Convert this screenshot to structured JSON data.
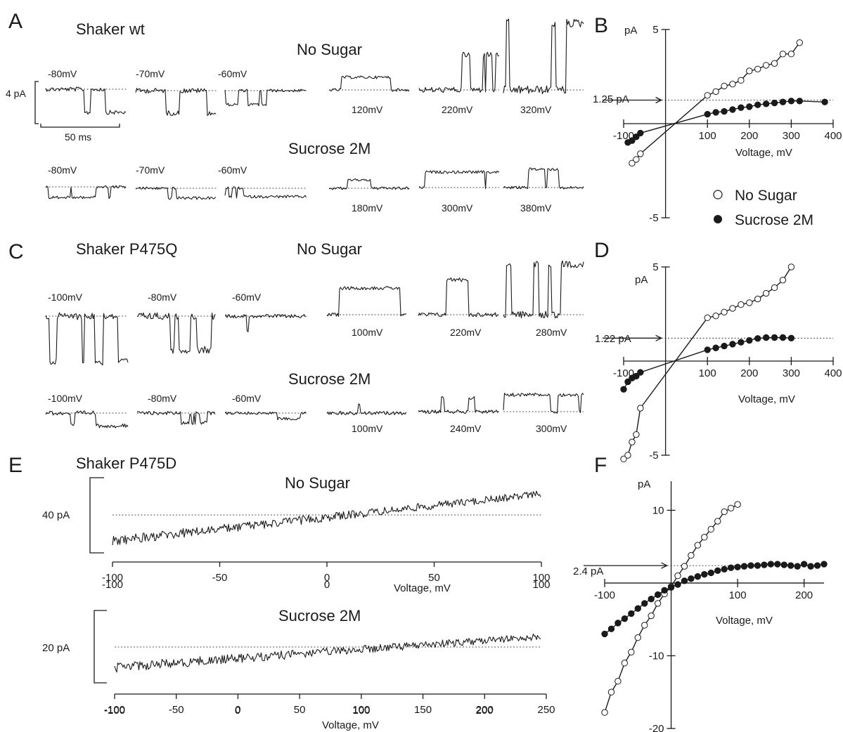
{
  "panels": {
    "A": {
      "letter": "A",
      "title": "Shaker wt",
      "no_sugar": {
        "label": "No Sugar",
        "neg_voltages": [
          "-80mV",
          "-70mV",
          "-60mV"
        ],
        "pos_voltages": [
          "120mV",
          "220mV",
          "320mV"
        ]
      },
      "sucrose": {
        "label": "Sucrose 2M",
        "neg_voltages": [
          "-80mV",
          "-70mV",
          "-60mV"
        ],
        "pos_voltages": [
          "180mV",
          "300mV",
          "380mV"
        ]
      },
      "scale_current": "4 pA",
      "scale_time": "50 ms"
    },
    "C": {
      "letter": "C",
      "title": "Shaker P475Q",
      "no_sugar": {
        "label": "No Sugar",
        "neg_voltages": [
          "-100mV",
          "-80mV",
          "-60mV"
        ],
        "pos_voltages": [
          "100mV",
          "220mV",
          "280mV"
        ]
      },
      "sucrose": {
        "label": "Sucrose 2M",
        "neg_voltages": [
          "-100mV",
          "-80mV",
          "-60mV"
        ],
        "pos_voltages": [
          "100mV",
          "240mV",
          "300mV"
        ]
      }
    },
    "E": {
      "letter": "E",
      "title": "Shaker P475D",
      "no_sugar": {
        "label": "No Sugar",
        "scale": "40 pA"
      },
      "sucrose": {
        "label": "Sucrose 2M",
        "scale": "20 pA"
      }
    },
    "B": {
      "letter": "B",
      "ylabel": "pA",
      "xlabel": "Voltage, mV",
      "annotation": "1.25 pA"
    },
    "D": {
      "letter": "D",
      "ylabel": "pA",
      "xlabel": "Voltage, mV",
      "annotation": "1.22 pA"
    },
    "F": {
      "letter": "F",
      "ylabel": "pA",
      "xlabel": "Voltage, mV",
      "annotation": "2.4 pA"
    }
  },
  "legend": {
    "no_sugar": "No Sugar",
    "sucrose": "Sucrose 2M",
    "open_marker_color": "#ffffff",
    "filled_marker_color": "#1a1a1a"
  },
  "chart_data": [
    {
      "id": "B",
      "type": "scatter",
      "xlabel": "Voltage, mV",
      "ylabel": "pA",
      "xlim": [
        -100,
        400
      ],
      "ylim": [
        -5,
        5
      ],
      "x_ticks": [
        -100,
        100,
        200,
        300,
        400
      ],
      "y_ticks": [
        -5,
        5
      ],
      "annotation": {
        "text": "1.25 pA",
        "y": 1.25
      },
      "series": [
        {
          "name": "No Sugar",
          "marker": "open-circle",
          "x": [
            -80,
            -70,
            -60,
            100,
            120,
            140,
            160,
            180,
            200,
            220,
            240,
            260,
            280,
            300,
            320
          ],
          "y": [
            -2.1,
            -1.9,
            -1.6,
            1.5,
            1.7,
            2.0,
            2.1,
            2.3,
            2.8,
            2.9,
            3.1,
            3.2,
            3.7,
            3.7,
            4.3
          ]
        },
        {
          "name": "Sucrose 2M",
          "marker": "filled-circle",
          "x": [
            -90,
            -80,
            -70,
            -60,
            100,
            120,
            140,
            160,
            180,
            200,
            220,
            240,
            260,
            280,
            300,
            320,
            380
          ],
          "y": [
            -1.0,
            -0.9,
            -0.7,
            -0.5,
            0.5,
            0.6,
            0.65,
            0.75,
            0.85,
            0.9,
            1.0,
            1.05,
            1.1,
            1.15,
            1.2,
            1.2,
            1.15
          ]
        }
      ]
    },
    {
      "id": "D",
      "type": "scatter",
      "xlabel": "Voltage, mV",
      "ylabel": "pA",
      "xlim": [
        -100,
        400
      ],
      "ylim": [
        -5,
        5
      ],
      "x_ticks": [
        -100,
        100,
        200,
        300,
        400
      ],
      "y_ticks": [
        -5,
        5
      ],
      "annotation": {
        "text": "1.22 pA",
        "y": 1.22
      },
      "series": [
        {
          "name": "No Sugar",
          "marker": "open-circle",
          "x": [
            -100,
            -90,
            -80,
            -70,
            -60,
            100,
            120,
            140,
            160,
            180,
            200,
            220,
            240,
            260,
            280,
            300
          ],
          "y": [
            -5.2,
            -5.0,
            -4.3,
            -3.9,
            -2.5,
            2.3,
            2.4,
            2.6,
            2.8,
            3.0,
            3.1,
            3.3,
            3.6,
            3.9,
            4.3,
            5.0
          ]
        },
        {
          "name": "Sucrose 2M",
          "marker": "filled-circle",
          "x": [
            -100,
            -90,
            -80,
            -70,
            -60,
            100,
            120,
            140,
            160,
            180,
            200,
            220,
            240,
            260,
            280,
            300
          ],
          "y": [
            -1.5,
            -1.1,
            -0.9,
            -0.8,
            -0.6,
            0.6,
            0.7,
            0.8,
            0.9,
            1.0,
            1.1,
            1.2,
            1.25,
            1.25,
            1.25,
            1.22
          ]
        }
      ]
    },
    {
      "id": "F",
      "type": "scatter",
      "xlabel": "Voltage, mV",
      "ylabel": "pA",
      "xlim": [
        -100,
        230
      ],
      "ylim": [
        -20,
        14
      ],
      "x_ticks": [
        -100,
        100,
        200
      ],
      "y_ticks": [
        -20,
        -10,
        10
      ],
      "annotation": {
        "text": "2.4 pA",
        "y": 2.4
      },
      "series": [
        {
          "name": "No Sugar",
          "marker": "open-circle",
          "x": [
            -100,
            -90,
            -80,
            -70,
            -60,
            -50,
            -40,
            -30,
            -20,
            -10,
            0,
            10,
            20,
            30,
            40,
            50,
            60,
            70,
            80,
            90,
            100
          ],
          "y": [
            -17.8,
            -15.0,
            -13.5,
            -11.0,
            -9.5,
            -7.5,
            -5.8,
            -4.5,
            -2.8,
            -1.5,
            -0.5,
            1.0,
            2.3,
            3.8,
            5.2,
            6.3,
            7.4,
            8.5,
            9.8,
            10.3,
            10.8
          ]
        },
        {
          "name": "Sucrose 2M",
          "marker": "filled-circle",
          "x": [
            -100,
            -90,
            -80,
            -70,
            -60,
            -50,
            -40,
            -30,
            -20,
            -10,
            0,
            10,
            20,
            30,
            40,
            50,
            60,
            70,
            80,
            90,
            100,
            110,
            120,
            130,
            140,
            150,
            160,
            170,
            180,
            190,
            200,
            210,
            220,
            230
          ],
          "y": [
            -7.0,
            -6.3,
            -5.5,
            -4.9,
            -4.2,
            -3.5,
            -2.8,
            -2.2,
            -1.6,
            -1.0,
            -0.6,
            -0.2,
            0.3,
            0.6,
            0.9,
            1.2,
            1.4,
            1.7,
            1.9,
            2.1,
            2.2,
            2.3,
            2.4,
            2.4,
            2.5,
            2.6,
            2.6,
            2.5,
            2.4,
            2.3,
            2.6,
            2.3,
            2.4,
            2.6
          ]
        }
      ]
    }
  ]
}
